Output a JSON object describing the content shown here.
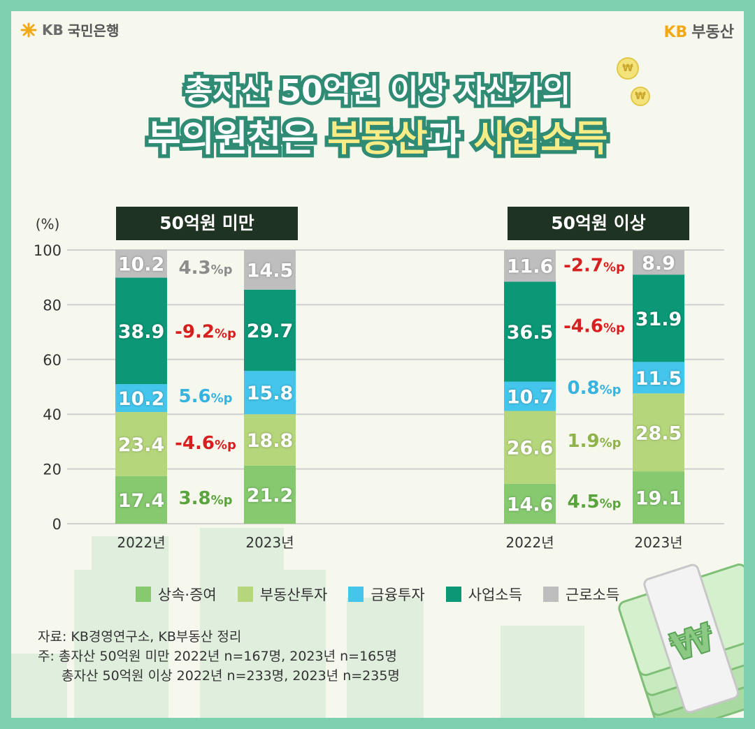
{
  "header": {
    "left_logo_kb": "KB",
    "left_logo_text": "국민은행",
    "right_logo_kb": "KB",
    "right_logo_text": "부동산"
  },
  "title": {
    "line1": "총자산 50억원 이상 자산가의",
    "line2_prefix": "부의원천은 ",
    "line2_hl1": "부동산",
    "line2_mid": "과 ",
    "line2_hl2": "사업소득"
  },
  "chart_data": {
    "type": "bar",
    "stacked": true,
    "unit_label": "(%)",
    "ylim": [
      0,
      100
    ],
    "y_ticks": [
      0,
      20,
      40,
      60,
      80,
      100
    ],
    "grid": true,
    "panels": [
      {
        "label": "50억원 미만",
        "categories": [
          "2022년",
          "2023년"
        ],
        "series": [
          {
            "name": "상속·증여",
            "values": [
              17.4,
              21.2
            ],
            "change": "3.8%p"
          },
          {
            "name": "부동산투자",
            "values": [
              23.4,
              18.8
            ],
            "change": "-4.6%p"
          },
          {
            "name": "금융투자",
            "values": [
              10.2,
              15.8
            ],
            "change": "5.6%p"
          },
          {
            "name": "사업소득",
            "values": [
              38.9,
              29.7
            ],
            "change": "-9.2%p"
          },
          {
            "name": "근로소득",
            "values": [
              10.2,
              14.5
            ],
            "change": "4.3%p"
          }
        ]
      },
      {
        "label": "50억원 이상",
        "categories": [
          "2022년",
          "2023년"
        ],
        "series": [
          {
            "name": "상속·증여",
            "values": [
              14.6,
              19.1
            ],
            "change": "4.5%p"
          },
          {
            "name": "부동산투자",
            "values": [
              26.6,
              28.5
            ],
            "change": "1.9%p"
          },
          {
            "name": "금융투자",
            "values": [
              10.7,
              11.5
            ],
            "change": "0.8%p"
          },
          {
            "name": "사업소득",
            "values": [
              36.5,
              31.9
            ],
            "change": "-4.6%p"
          },
          {
            "name": "근로소득",
            "values": [
              11.6,
              8.9
            ],
            "change": "-2.7%p"
          }
        ]
      }
    ],
    "legend_placement": "bottom"
  },
  "colors": {
    "상속·증여": "#86c96f",
    "부동산투자": "#b6d67c",
    "금융투자": "#43c5ec",
    "사업소득": "#0b9877",
    "근로소득": "#bebebe",
    "change_positive": {
      "상속·증여": "#5aa43d",
      "부동산투자": "#8fb24a",
      "금융투자": "#36b3df",
      "사업소득": "#0b9877",
      "근로소득": "#8c8c8c"
    },
    "change_negative": "#d81f1f"
  },
  "source": {
    "line1": "자료: KB경영연구소, KB부동산 정리",
    "line2": "주: 총자산 50억원 미만 2022년 n=167명, 2023년 n=165명",
    "line3": "총자산 50억원 이상 2022년 n=233명, 2023년 n=235명"
  },
  "icons": {
    "left_logo": "kb-star-icon",
    "coin": "won-coin-icon",
    "money": "money-stack-icon",
    "won_symbol": "₩"
  }
}
